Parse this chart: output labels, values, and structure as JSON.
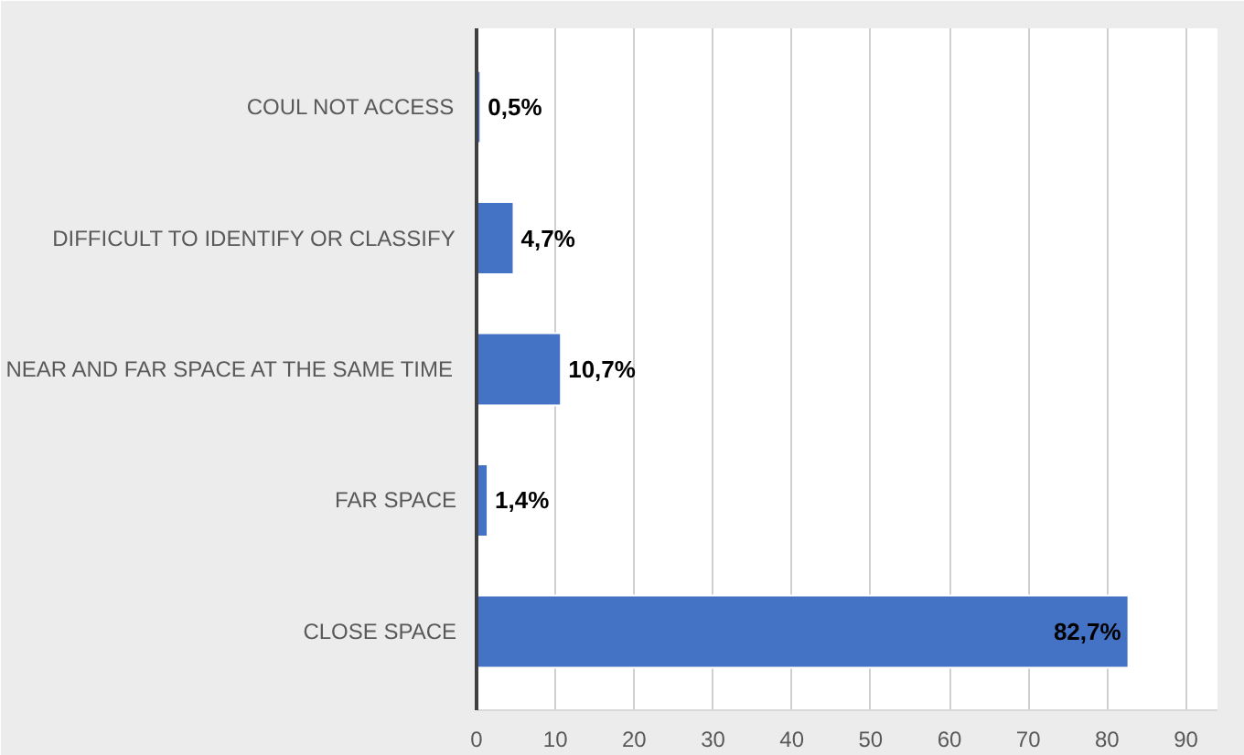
{
  "chart_data": {
    "type": "bar",
    "orientation": "horizontal",
    "categories": [
      "COUL NOT ACCESS",
      "DIFFICULT TO IDENTIFY OR CLASSIFY",
      "NEAR AND FAR SPACE AT THE SAME TIME",
      "FAR SPACE",
      "CLOSE SPACE"
    ],
    "values": [
      0.5,
      4.7,
      10.7,
      1.4,
      82.7
    ],
    "value_labels": [
      "0,5%",
      "4,7%",
      "10,7%",
      "1,4%",
      "82,7%"
    ],
    "color": "#4472c4",
    "xlim": [
      0,
      94
    ],
    "xticks": [
      0,
      10,
      20,
      30,
      40,
      50,
      60,
      70,
      80,
      90
    ],
    "grid": "x"
  }
}
